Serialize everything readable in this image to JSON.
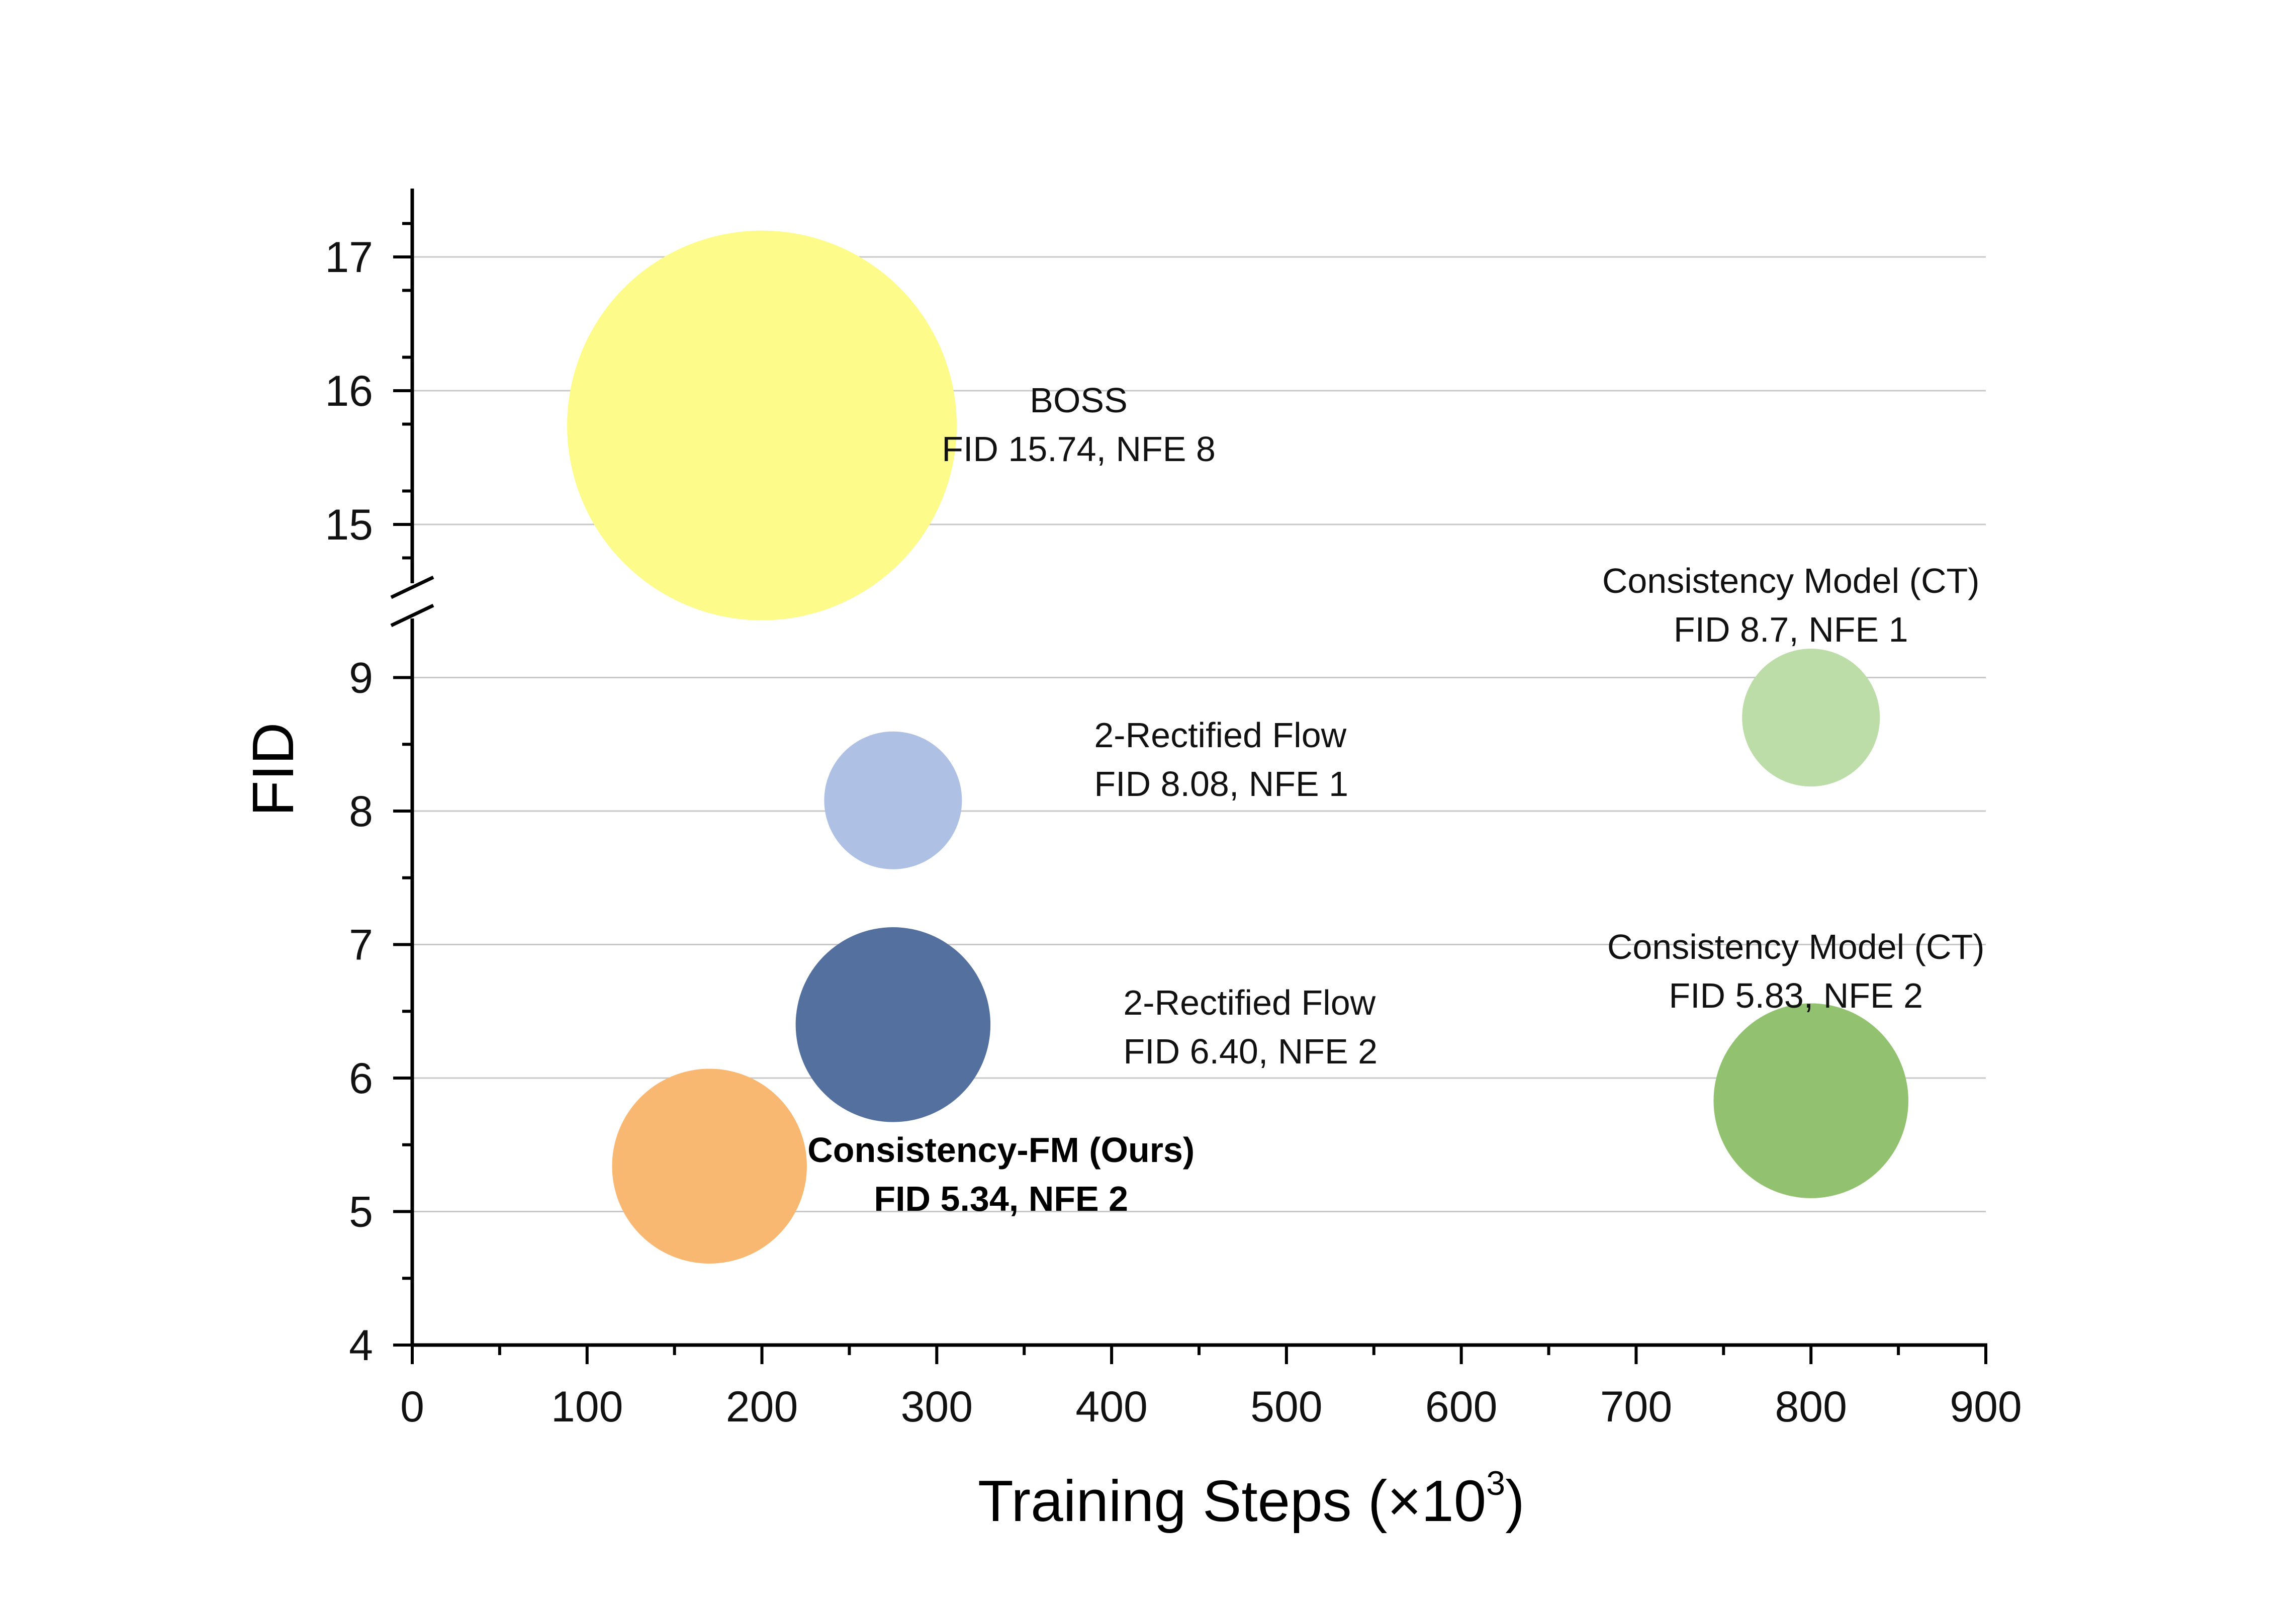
{
  "chart_data": {
    "type": "scatter",
    "title": "",
    "xlabel": "Training Steps (×10",
    "xlabel_exponent": "3",
    "xlabel_close": ")",
    "ylabel": "FID",
    "xlim": [
      0,
      900
    ],
    "ylim_lower": [
      4,
      9.5
    ],
    "ylim_upper": [
      14.6,
      17.5
    ],
    "axis_break": true,
    "grid": "horizontal",
    "x_ticks": [
      "0",
      "100",
      "200",
      "300",
      "400",
      "500",
      "600",
      "700",
      "800",
      "900"
    ],
    "y_ticks_lower": [
      "4",
      "5",
      "6",
      "7",
      "8",
      "9"
    ],
    "y_ticks_upper": [
      "15",
      "16",
      "17"
    ],
    "points": [
      {
        "x": 200,
        "y": 15.74,
        "nfe": 8,
        "color": "#fdfb8a",
        "label_lines": [
          "BOSS",
          "FID 15.74, NFE 8"
        ],
        "bold": false
      },
      {
        "x": 275,
        "y": 8.08,
        "nfe": 1,
        "color": "#aec1e4",
        "label_lines": [
          "2-Rectified Flow",
          "FID 8.08, NFE 1"
        ],
        "bold": false
      },
      {
        "x": 800,
        "y": 8.7,
        "nfe": 1,
        "color": "#bcdca8",
        "label_lines": [
          "Consistency Model (CT)",
          "FID 8.7, NFE 1"
        ],
        "bold": false
      },
      {
        "x": 275,
        "y": 6.4,
        "nfe": 2,
        "color": "#53709f",
        "label_lines": [
          "2-Rectified Flow",
          "FID 6.40, NFE 2"
        ],
        "bold": false
      },
      {
        "x": 800,
        "y": 5.83,
        "nfe": 2,
        "color": "#92c270",
        "label_lines": [
          "Consistency Model (CT)",
          "FID 5.83, NFE 2"
        ],
        "bold": false
      },
      {
        "x": 170,
        "y": 5.34,
        "nfe": 2,
        "color": "#f9b872",
        "label_lines": [
          "Consistency-FM (Ours)",
          "FID 5.34, NFE 2"
        ],
        "bold": true
      }
    ]
  }
}
